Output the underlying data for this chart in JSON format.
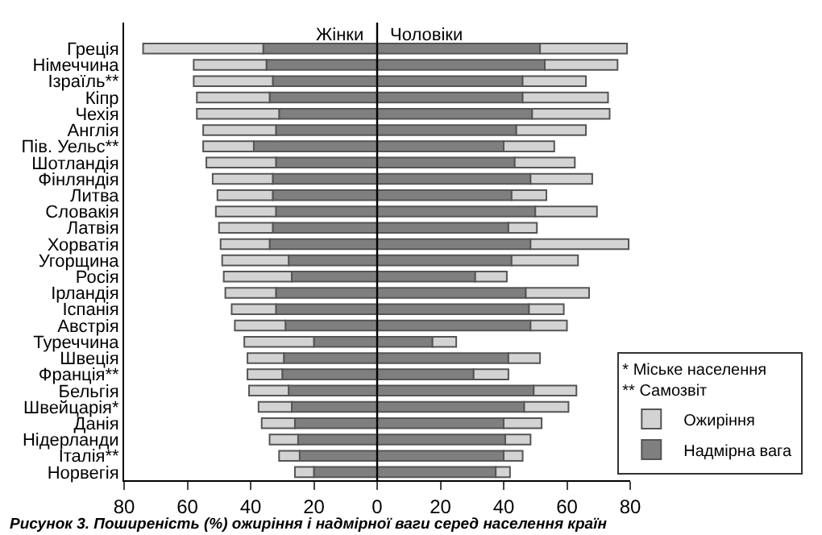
{
  "chart_data": {
    "type": "bar",
    "orientation": "horizontal",
    "stacked": true,
    "title": "Рисунок 3. Поширеність (%) ожиріння і надмірної ваги серед населення країн",
    "legend_title": "* Міське населення\n** Самозвіт",
    "annotations": [
      "Жінки",
      "Чоловіки"
    ],
    "categories": [
      "Греція",
      "Німеччина",
      "Ізраїль**",
      "Кіпр",
      "Чехія",
      "Англія",
      "Пів. Уельс**",
      "Шотландія",
      "Фінляндія",
      "Литва",
      "Словакія",
      "Латвія",
      "Хорватія",
      "Угорщина",
      "Росія",
      "Ірландія",
      "Іспанія",
      "Австрія",
      "Туреччина",
      "Швеція",
      "Франція**",
      "Бельгія",
      "Швейцарія*",
      "Данія",
      "Нідерланди",
      "Італія**",
      "Норвегія"
    ],
    "series": [
      {
        "color": "#7f7f7f",
        "values": [
          -36,
          -35,
          -33,
          -34,
          -31,
          -32,
          -39,
          -32,
          -33,
          -33,
          -32,
          -33,
          -34,
          -28,
          -27,
          -32,
          -32,
          -29,
          -20,
          -29.5,
          -30,
          -28,
          -27,
          -26,
          -25,
          -24.5,
          -20
        ]
      },
      {
        "color": "#d3d3d3",
        "values": [
          -38,
          -23,
          -25,
          -23,
          -26,
          -23,
          -16,
          -22,
          -19,
          -17.5,
          -19,
          -17,
          -15.5,
          -21,
          -21.5,
          -16,
          -14,
          -16,
          -22,
          -11.5,
          -11,
          -12.5,
          -10.5,
          -10.5,
          -9,
          -6.5,
          -6
        ]
      },
      {
        "name": "Надмірна вага",
        "color": "#7f7f7f",
        "values": [
          51.5,
          53,
          46,
          46,
          49,
          44,
          40,
          43.5,
          48.5,
          42.5,
          50,
          41.5,
          48.5,
          42.5,
          31,
          47,
          48,
          48.5,
          17.5,
          41.5,
          30.5,
          49.5,
          46.5,
          40,
          40.5,
          40,
          37.5
        ]
      },
      {
        "name": "Ожиріння",
        "color": "#d3d3d3",
        "values": [
          27.5,
          23,
          20,
          27,
          24.5,
          22,
          16,
          19,
          19.5,
          11,
          19.5,
          9,
          31,
          21,
          10,
          20,
          11,
          11.5,
          7.5,
          10,
          11,
          13.5,
          14,
          12,
          8,
          6,
          4.5
        ]
      }
    ],
    "xlim": [
      -80,
      80
    ],
    "xticks": [
      {
        "value": -80,
        "label": "80"
      },
      {
        "value": -60,
        "label": "60"
      },
      {
        "value": -40,
        "label": "40"
      },
      {
        "value": -20,
        "label": "20"
      },
      0,
      20,
      40,
      60,
      80
    ],
    "ref_lines": [
      {
        "axis": "x",
        "value": 0,
        "color": "#000000"
      }
    ],
    "legend": "bottom right"
  }
}
